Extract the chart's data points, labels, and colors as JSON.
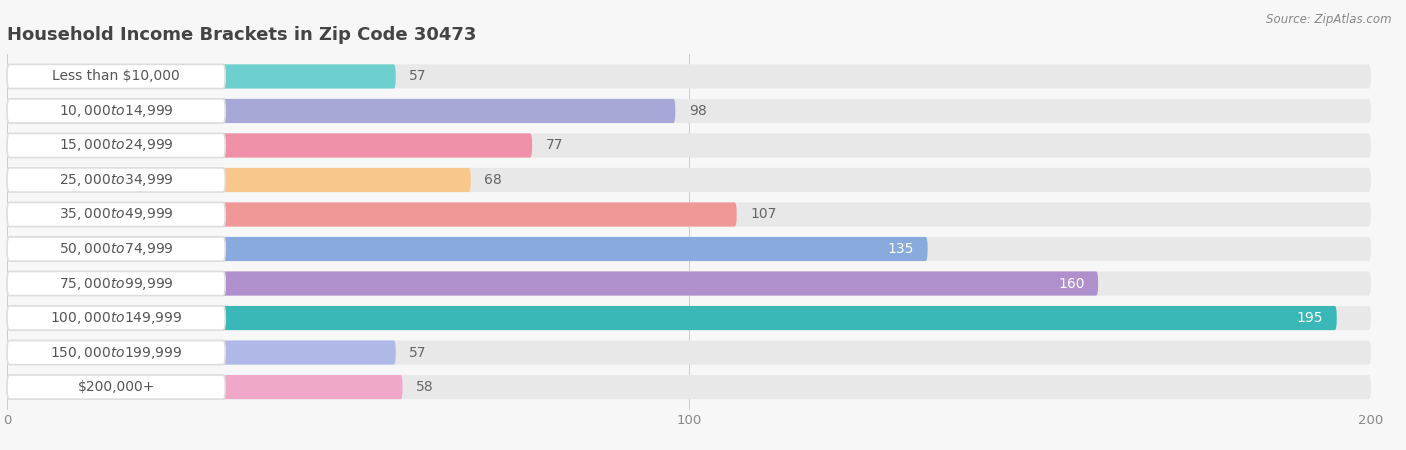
{
  "title": "Household Income Brackets in Zip Code 30473",
  "source": "Source: ZipAtlas.com",
  "categories": [
    "Less than $10,000",
    "$10,000 to $14,999",
    "$15,000 to $24,999",
    "$25,000 to $34,999",
    "$35,000 to $49,999",
    "$50,000 to $74,999",
    "$75,000 to $99,999",
    "$100,000 to $149,999",
    "$150,000 to $199,999",
    "$200,000+"
  ],
  "values": [
    57,
    98,
    77,
    68,
    107,
    135,
    160,
    195,
    57,
    58
  ],
  "bar_colors": [
    "#6dcfce",
    "#a8a8d8",
    "#f090a8",
    "#f8c88a",
    "#f09898",
    "#88aadd",
    "#b090cc",
    "#3ab8b8",
    "#b0b8e8",
    "#f0a8c8"
  ],
  "background_color": "#f7f7f7",
  "bar_bg_color": "#e8e8e8",
  "xlim": [
    0,
    200
  ],
  "xticks": [
    0,
    100,
    200
  ],
  "title_fontsize": 13,
  "label_fontsize": 10,
  "value_fontsize": 10,
  "value_threshold_inside": 120
}
